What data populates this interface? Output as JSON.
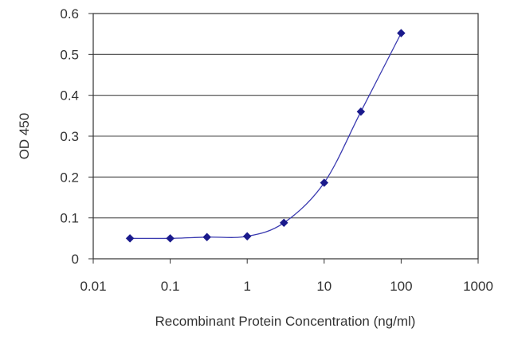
{
  "chart_data": {
    "type": "line",
    "title": "",
    "xlabel": "Recombinant Protein Concentration (ng/ml)",
    "ylabel": "OD 450",
    "x_scale": "log",
    "xlim": [
      0.01,
      1000
    ],
    "ylim": [
      0,
      0.6
    ],
    "x_ticks": [
      "0.01",
      "0.1",
      "1",
      "10",
      "100",
      "1000"
    ],
    "y_ticks": [
      "0",
      "0.1",
      "0.2",
      "0.3",
      "0.4",
      "0.5",
      "0.6"
    ],
    "grid": "horizontal",
    "series": [
      {
        "x": [
          0.03,
          0.1,
          0.3,
          1,
          3,
          10,
          30,
          100
        ],
        "y": [
          0.05,
          0.05,
          0.053,
          0.055,
          0.088,
          0.186,
          0.36,
          0.552
        ],
        "color": "#1a1a8c",
        "marker": "diamond"
      }
    ]
  }
}
